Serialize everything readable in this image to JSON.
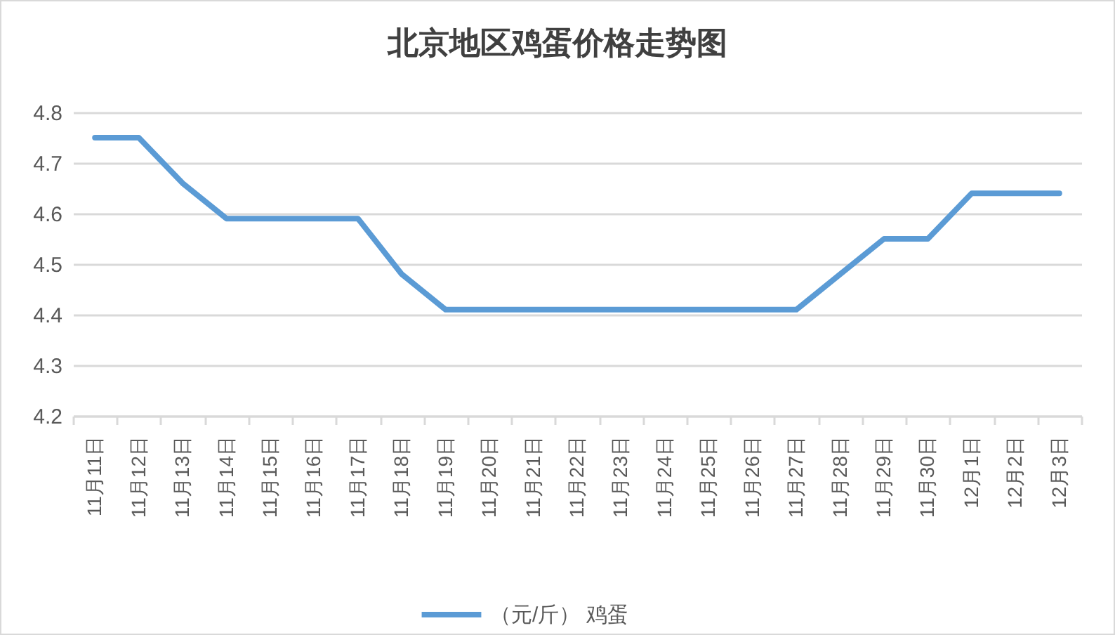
{
  "chart_data": {
    "type": "line",
    "title": "北京地区鸡蛋价格走势图",
    "categories": [
      "11月11日",
      "11月12日",
      "11月13日",
      "11月14日",
      "11月15日",
      "11月16日",
      "11月17日",
      "11月18日",
      "11月19日",
      "11月20日",
      "11月21日",
      "11月22日",
      "11月23日",
      "11月24日",
      "11月25日",
      "11月26日",
      "11月27日",
      "11月28日",
      "11月29日",
      "11月30日",
      "12月1日",
      "12月2日",
      "12月3日"
    ],
    "series": [
      {
        "name": "（元/斤） 鸡蛋",
        "color": "#5b9bd5",
        "values": [
          4.75,
          4.75,
          4.66,
          4.59,
          4.59,
          4.59,
          4.59,
          4.48,
          4.41,
          4.41,
          4.41,
          4.41,
          4.41,
          4.41,
          4.41,
          4.41,
          4.41,
          4.48,
          4.55,
          4.55,
          4.64,
          4.64,
          4.64
        ]
      }
    ],
    "ylim": [
      4.2,
      4.8
    ],
    "yticks": [
      4.2,
      4.3,
      4.4,
      4.5,
      4.6,
      4.7,
      4.8
    ],
    "grid": "y",
    "legend": "bottom"
  }
}
